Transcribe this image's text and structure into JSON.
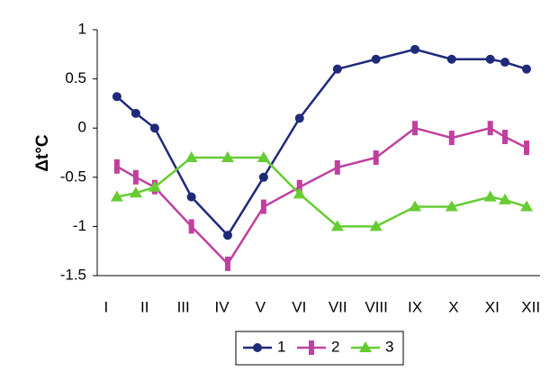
{
  "chart_data": {
    "type": "line",
    "y_label": "Δt°C",
    "x": [
      1.28,
      1.77,
      2.26,
      3.21,
      4.15,
      5.08,
      6.01,
      6.99,
      7.99,
      9.0,
      9.95,
      10.95,
      11.33,
      11.89
    ],
    "xlim": [
      0.77,
      12.24
    ],
    "xticks": [
      {
        "value": 1,
        "label": "I"
      },
      {
        "value": 2,
        "label": "II"
      },
      {
        "value": 3,
        "label": "III"
      },
      {
        "value": 4,
        "label": "IV"
      },
      {
        "value": 5,
        "label": "V"
      },
      {
        "value": 6,
        "label": "VI"
      },
      {
        "value": 7,
        "label": "VII"
      },
      {
        "value": 8,
        "label": "VIII"
      },
      {
        "value": 9,
        "label": "IX"
      },
      {
        "value": 10,
        "label": "X"
      },
      {
        "value": 11,
        "label": "XI"
      },
      {
        "value": 12,
        "label": "XII"
      }
    ],
    "ylim": [
      -1.5,
      1
    ],
    "yticks": [
      1,
      0.5,
      0,
      -0.5,
      -1,
      -1.5
    ],
    "grid": false,
    "legend": "bottom",
    "series": [
      {
        "name": "1",
        "color": "#1f2a7a",
        "marker": "circle",
        "values": [
          0.32,
          0.15,
          0.0,
          -0.7,
          -1.09,
          -0.5,
          0.1,
          0.6,
          0.7,
          0.8,
          0.7,
          0.7,
          0.67,
          0.6
        ]
      },
      {
        "name": "2",
        "color": "#c040a0",
        "marker": "bar",
        "values": [
          -0.39,
          -0.5,
          -0.6,
          -1.0,
          -1.38,
          -0.8,
          -0.6,
          -0.4,
          -0.3,
          0.0,
          -0.1,
          0.0,
          -0.09,
          -0.2
        ]
      },
      {
        "name": "3",
        "color": "#66cc33",
        "marker": "triangle",
        "values": [
          -0.7,
          -0.66,
          -0.6,
          -0.3,
          -0.3,
          -0.3,
          -0.67,
          -1.0,
          -1.0,
          -0.8,
          -0.8,
          -0.7,
          -0.73,
          -0.8
        ]
      }
    ]
  }
}
